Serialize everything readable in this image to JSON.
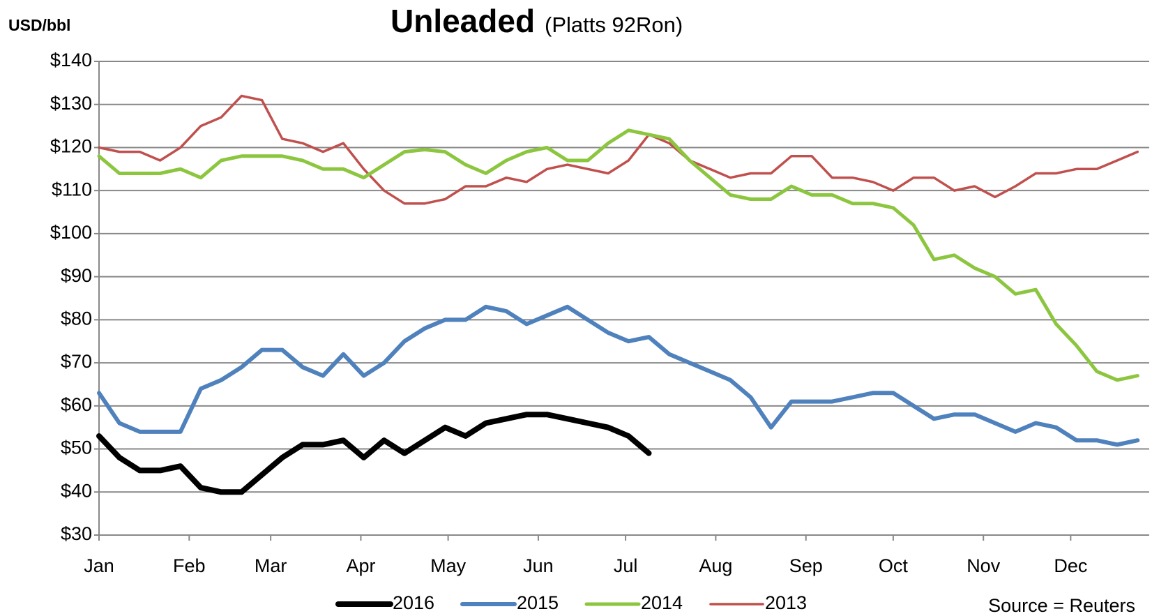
{
  "chart_data": {
    "type": "line",
    "title": "Unleaded",
    "subtitle": "(Platts 92Ron)",
    "y_label": "USD/bbl",
    "annotation": "Source = Reuters",
    "legend": "bottom",
    "grid": true,
    "x": [
      0,
      7,
      14,
      21,
      28,
      35,
      42,
      49,
      56,
      63,
      70,
      77,
      84,
      91,
      98,
      105,
      112,
      119,
      126,
      133,
      140,
      147,
      154,
      161,
      168,
      175,
      182,
      189,
      196,
      203,
      210,
      217,
      224,
      231,
      238,
      245,
      252,
      259,
      266,
      273,
      280,
      287,
      294,
      301,
      308,
      315,
      322,
      329,
      336,
      343,
      350,
      357
    ],
    "xlim": [
      0,
      361
    ],
    "xticks": [
      {
        "value": 0,
        "label": "Jan"
      },
      {
        "value": 31,
        "label": "Feb"
      },
      {
        "value": 59,
        "label": "Mar"
      },
      {
        "value": 90,
        "label": "Apr"
      },
      {
        "value": 120,
        "label": "May"
      },
      {
        "value": 151,
        "label": "Jun"
      },
      {
        "value": 181,
        "label": "Jul"
      },
      {
        "value": 212,
        "label": "Aug"
      },
      {
        "value": 243,
        "label": "Sep"
      },
      {
        "value": 273,
        "label": "Oct"
      },
      {
        "value": 304,
        "label": "Nov"
      },
      {
        "value": 334,
        "label": "Dec"
      }
    ],
    "ylim": [
      30,
      140
    ],
    "yticks": [
      {
        "value": 30,
        "label": "$30"
      },
      {
        "value": 40,
        "label": "$40"
      },
      {
        "value": 50,
        "label": "$50"
      },
      {
        "value": 60,
        "label": "$60"
      },
      {
        "value": 70,
        "label": "$70"
      },
      {
        "value": 80,
        "label": "$80"
      },
      {
        "value": 90,
        "label": "$90"
      },
      {
        "value": 100,
        "label": "$100"
      },
      {
        "value": 110,
        "label": "$110"
      },
      {
        "value": 120,
        "label": "$120"
      },
      {
        "value": 130,
        "label": "$130"
      },
      {
        "value": 140,
        "label": "$140"
      }
    ],
    "series": [
      {
        "name": "2016",
        "color": "#000000",
        "values": [
          53,
          48,
          45,
          45,
          46,
          41,
          40,
          40,
          44,
          48,
          51,
          51,
          52,
          48,
          52,
          49,
          52,
          55,
          53,
          56,
          57,
          58,
          58,
          57,
          56,
          55,
          53,
          49,
          null,
          null,
          null,
          null,
          null,
          null,
          null,
          null,
          null,
          null,
          null,
          null,
          null,
          null,
          null,
          null,
          null,
          null,
          null,
          null,
          null,
          null,
          null,
          null
        ]
      },
      {
        "name": "2015",
        "color": "#4f81bd",
        "values": [
          63,
          56,
          54,
          54,
          54,
          64,
          66,
          69,
          73,
          73,
          69,
          67,
          72,
          67,
          70,
          75,
          78,
          80,
          80,
          83,
          82,
          79,
          81,
          83,
          80,
          77,
          75,
          76,
          72,
          70,
          68,
          66,
          62,
          55,
          61,
          61,
          61,
          62,
          63,
          63,
          60,
          57,
          58,
          58,
          56,
          54,
          56,
          55,
          52,
          52,
          51,
          52
        ]
      },
      {
        "name": "2014",
        "color": "#8cc63f",
        "values": [
          118,
          114,
          114,
          114,
          115,
          113,
          117,
          118,
          118,
          118,
          117,
          115,
          115,
          113,
          116,
          119,
          119.5,
          119,
          116,
          114,
          117,
          119,
          120,
          117,
          117,
          121,
          124,
          123,
          122,
          117,
          113,
          109,
          108,
          108,
          111,
          109,
          109,
          107,
          107,
          106,
          102,
          94,
          95,
          92,
          90,
          86,
          87,
          79,
          74,
          68,
          66,
          67
        ]
      },
      {
        "name": "2013",
        "color": "#c0504d",
        "values": [
          120,
          119,
          119,
          117,
          120,
          125,
          127,
          132,
          131,
          122,
          121,
          119,
          121,
          115,
          110,
          107,
          107,
          108,
          111,
          111,
          113,
          112,
          115,
          116,
          115,
          114,
          117,
          123,
          121,
          117,
          115,
          113,
          114,
          114,
          118,
          118,
          113,
          113,
          112,
          110,
          113,
          113,
          110,
          111,
          108.5,
          111,
          114,
          114,
          115,
          115,
          117,
          119
        ]
      }
    ]
  }
}
